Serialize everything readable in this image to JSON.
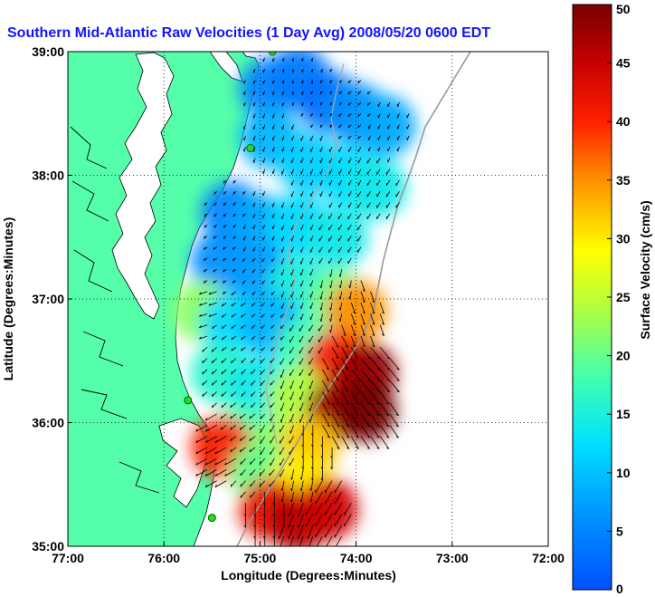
{
  "chart_data": {
    "type": "heatmap",
    "title": "Southern Mid-Atlantic Raw Velocities (1 Day Avg) 2008/05/20 0600 EDT",
    "xlabel": "Longitude (Degrees:Minutes)",
    "ylabel": "Latitude (Degrees:Minutes)",
    "x_ticks": [
      "77:00",
      "76:00",
      "75:00",
      "74:00",
      "73:00",
      "72:00"
    ],
    "y_ticks": [
      "39:00",
      "38:00",
      "37:00",
      "36:00",
      "35:00"
    ],
    "xlim": [
      -77,
      -72
    ],
    "ylim": [
      35,
      39
    ],
    "grid": true,
    "colorbar": {
      "label": "Surface Velocity (cm/s)",
      "range": [
        0,
        50
      ],
      "ticks": [
        "0",
        "5",
        "10",
        "15",
        "20",
        "25",
        "30",
        "35",
        "40",
        "45",
        "50"
      ]
    },
    "velocity_field": [
      {
        "lon": -74.9,
        "lat": 38.7,
        "speed": 5,
        "dir_deg": 200
      },
      {
        "lon": -74.6,
        "lat": 38.8,
        "speed": 4,
        "dir_deg": 190
      },
      {
        "lon": -74.3,
        "lat": 38.6,
        "speed": 3,
        "dir_deg": 210
      },
      {
        "lon": -74.0,
        "lat": 38.5,
        "speed": 6,
        "dir_deg": 220
      },
      {
        "lon": -73.7,
        "lat": 38.4,
        "speed": 8,
        "dir_deg": 200
      },
      {
        "lon": -74.9,
        "lat": 38.3,
        "speed": 9,
        "dir_deg": 195
      },
      {
        "lon": -74.5,
        "lat": 38.1,
        "speed": 11,
        "dir_deg": 200
      },
      {
        "lon": -74.1,
        "lat": 38.0,
        "speed": 12,
        "dir_deg": 205
      },
      {
        "lon": -73.8,
        "lat": 37.9,
        "speed": 14,
        "dir_deg": 210
      },
      {
        "lon": -75.3,
        "lat": 37.7,
        "speed": 5,
        "dir_deg": 220
      },
      {
        "lon": -75.0,
        "lat": 37.6,
        "speed": 8,
        "dir_deg": 200
      },
      {
        "lon": -74.6,
        "lat": 37.6,
        "speed": 12,
        "dir_deg": 200
      },
      {
        "lon": -74.2,
        "lat": 37.5,
        "speed": 14,
        "dir_deg": 210
      },
      {
        "lon": -75.4,
        "lat": 37.3,
        "speed": 6,
        "dir_deg": 230
      },
      {
        "lon": -75.0,
        "lat": 37.2,
        "speed": 7,
        "dir_deg": 215
      },
      {
        "lon": -74.6,
        "lat": 37.1,
        "speed": 15,
        "dir_deg": 200
      },
      {
        "lon": -74.2,
        "lat": 37.0,
        "speed": 20,
        "dir_deg": 190
      },
      {
        "lon": -74.0,
        "lat": 36.9,
        "speed": 35,
        "dir_deg": 160
      },
      {
        "lon": -75.6,
        "lat": 36.9,
        "speed": 22,
        "dir_deg": 250
      },
      {
        "lon": -75.3,
        "lat": 36.8,
        "speed": 12,
        "dir_deg": 230
      },
      {
        "lon": -74.9,
        "lat": 36.8,
        "speed": 9,
        "dir_deg": 220
      },
      {
        "lon": -74.5,
        "lat": 36.6,
        "speed": 18,
        "dir_deg": 210
      },
      {
        "lon": -74.2,
        "lat": 36.5,
        "speed": 40,
        "dir_deg": 150
      },
      {
        "lon": -73.9,
        "lat": 36.4,
        "speed": 48,
        "dir_deg": 140
      },
      {
        "lon": -75.4,
        "lat": 36.4,
        "speed": 16,
        "dir_deg": 225
      },
      {
        "lon": -75.0,
        "lat": 36.3,
        "speed": 14,
        "dir_deg": 220
      },
      {
        "lon": -74.6,
        "lat": 36.2,
        "speed": 24,
        "dir_deg": 200
      },
      {
        "lon": -74.2,
        "lat": 36.1,
        "speed": 47,
        "dir_deg": 150
      },
      {
        "lon": -73.9,
        "lat": 36.1,
        "speed": 50,
        "dir_deg": 145
      },
      {
        "lon": -75.2,
        "lat": 35.9,
        "speed": 18,
        "dir_deg": 230
      },
      {
        "lon": -74.8,
        "lat": 35.8,
        "speed": 22,
        "dir_deg": 210
      },
      {
        "lon": -74.5,
        "lat": 35.8,
        "speed": 32,
        "dir_deg": 180
      },
      {
        "lon": -75.4,
        "lat": 35.8,
        "speed": 40,
        "dir_deg": 240
      },
      {
        "lon": -75.0,
        "lat": 35.6,
        "speed": 20,
        "dir_deg": 220
      },
      {
        "lon": -74.6,
        "lat": 35.5,
        "speed": 30,
        "dir_deg": 190
      },
      {
        "lon": -74.9,
        "lat": 35.3,
        "speed": 42,
        "dir_deg": 180
      },
      {
        "lon": -74.6,
        "lat": 35.2,
        "speed": 46,
        "dir_deg": 200
      },
      {
        "lon": -74.3,
        "lat": 35.3,
        "speed": 44,
        "dir_deg": 210
      }
    ],
    "stations": [
      {
        "lon": -74.87,
        "lat": 39.0
      },
      {
        "lon": -75.1,
        "lat": 38.22
      },
      {
        "lon": -75.75,
        "lat": 36.18
      },
      {
        "lon": -75.5,
        "lat": 35.23
      }
    ]
  }
}
